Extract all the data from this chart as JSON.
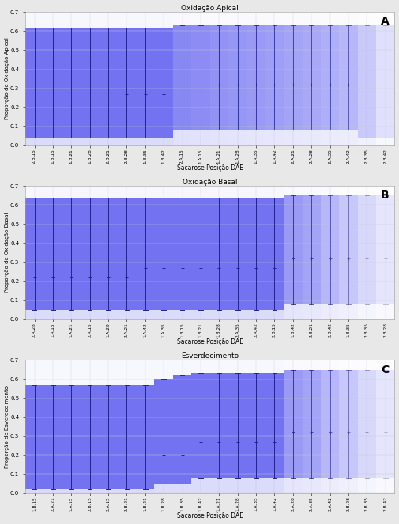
{
  "panels": [
    {
      "title": "Oxidação Apical",
      "ylabel": "Proporção de Oxidação Apical",
      "label": "A",
      "xlabel": "Sacarose Posição DAE",
      "categories": [
        "2.B.15",
        "1.B.15",
        "1.B.21",
        "1.B.28",
        "2.B.21",
        "2.B.28",
        "1.B.35",
        "1.B.42",
        "2.A.15",
        "1.A.15",
        "1.A.21",
        "1.A.28",
        "1.A.35",
        "1.A.42",
        "2.A.21",
        "2.A.28",
        "2.A.35",
        "2.A.42",
        "2.B.35",
        "2.B.42"
      ],
      "mean": [
        0.22,
        0.22,
        0.22,
        0.22,
        0.22,
        0.27,
        0.27,
        0.27,
        0.32,
        0.32,
        0.32,
        0.32,
        0.32,
        0.32,
        0.32,
        0.32,
        0.32,
        0.32,
        0.32,
        0.32
      ],
      "lower": [
        0.04,
        0.04,
        0.04,
        0.04,
        0.04,
        0.04,
        0.04,
        0.04,
        0.08,
        0.08,
        0.08,
        0.08,
        0.08,
        0.08,
        0.08,
        0.08,
        0.08,
        0.08,
        0.04,
        0.04
      ],
      "upper": [
        0.62,
        0.62,
        0.62,
        0.62,
        0.62,
        0.62,
        0.62,
        0.62,
        0.63,
        0.63,
        0.63,
        0.63,
        0.63,
        0.63,
        0.63,
        0.63,
        0.63,
        0.63,
        0.63,
        0.63
      ],
      "alpha": [
        1.0,
        1.0,
        1.0,
        1.0,
        1.0,
        1.0,
        1.0,
        1.0,
        0.85,
        0.82,
        0.78,
        0.75,
        0.72,
        0.69,
        0.65,
        0.62,
        0.57,
        0.52,
        0.38,
        0.22
      ]
    },
    {
      "title": "Oxidação Basal",
      "ylabel": "Proporção de Oxidação Basal",
      "label": "B",
      "xlabel": "Sacarose Posição DAE",
      "categories": [
        "2.A.28",
        "1.A.15",
        "1.A.21",
        "2.A.15",
        "1.A.28",
        "2.A.21",
        "1.A.42",
        "1.A.35",
        "1.B.15",
        "1.B.21",
        "1.B.28",
        "2.A.35",
        "2.A.42",
        "2.B.15",
        "1.B.42",
        "2.B.21",
        "2.B.42",
        "1.B.35",
        "2.B.35",
        "2.B.28"
      ],
      "mean": [
        0.22,
        0.22,
        0.22,
        0.22,
        0.22,
        0.22,
        0.27,
        0.27,
        0.27,
        0.27,
        0.27,
        0.27,
        0.27,
        0.27,
        0.32,
        0.32,
        0.32,
        0.32,
        0.32,
        0.32
      ],
      "lower": [
        0.05,
        0.05,
        0.05,
        0.05,
        0.05,
        0.05,
        0.05,
        0.05,
        0.05,
        0.05,
        0.05,
        0.05,
        0.05,
        0.05,
        0.08,
        0.08,
        0.08,
        0.08,
        0.08,
        0.08
      ],
      "upper": [
        0.64,
        0.64,
        0.64,
        0.64,
        0.64,
        0.64,
        0.64,
        0.64,
        0.64,
        0.64,
        0.64,
        0.64,
        0.64,
        0.64,
        0.65,
        0.65,
        0.65,
        0.65,
        0.65,
        0.65
      ],
      "alpha": [
        1.0,
        1.0,
        1.0,
        1.0,
        1.0,
        1.0,
        1.0,
        1.0,
        1.0,
        1.0,
        1.0,
        1.0,
        1.0,
        1.0,
        0.72,
        0.65,
        0.52,
        0.4,
        0.28,
        0.18
      ]
    },
    {
      "title": "Esverdecimento",
      "ylabel": "Proporção de Esverdecimento",
      "label": "C",
      "xlabel": "Sacarose Posição DAE",
      "categories": [
        "1.B.15",
        "2.A.21",
        "1.A.15",
        "2.B.15",
        "2.A.15",
        "2.B.21",
        "1.B.21",
        "1.B.28",
        "1.B.35",
        "1.B.42",
        "1.A.21",
        "1.A.28",
        "1.A.35",
        "1.A.42",
        "2.A.28",
        "2.A.35",
        "2.A.42",
        "2.B.28",
        "2.B.35",
        "2.B.42"
      ],
      "mean": [
        0.05,
        0.05,
        0.05,
        0.05,
        0.05,
        0.05,
        0.05,
        0.2,
        0.2,
        0.27,
        0.27,
        0.27,
        0.27,
        0.27,
        0.32,
        0.32,
        0.32,
        0.32,
        0.32,
        0.32
      ],
      "lower": [
        0.02,
        0.02,
        0.02,
        0.02,
        0.02,
        0.02,
        0.02,
        0.05,
        0.05,
        0.08,
        0.08,
        0.08,
        0.08,
        0.08,
        0.08,
        0.08,
        0.08,
        0.08,
        0.08,
        0.08
      ],
      "upper": [
        0.57,
        0.57,
        0.57,
        0.57,
        0.57,
        0.57,
        0.57,
        0.6,
        0.62,
        0.63,
        0.63,
        0.63,
        0.63,
        0.63,
        0.65,
        0.65,
        0.65,
        0.65,
        0.65,
        0.65
      ],
      "alpha": [
        1.0,
        1.0,
        1.0,
        1.0,
        1.0,
        1.0,
        1.0,
        1.0,
        1.0,
        1.0,
        1.0,
        1.0,
        1.0,
        1.0,
        0.72,
        0.65,
        0.52,
        0.4,
        0.28,
        0.18
      ]
    }
  ],
  "ylim": [
    0.0,
    0.7
  ],
  "yticks": [
    0.0,
    0.1,
    0.2,
    0.3,
    0.4,
    0.5,
    0.6,
    0.7
  ],
  "fig_width": 5.05,
  "fig_height": 6.63,
  "dpi": 100,
  "bg_color": "#e8e8e8",
  "panel_bg": "#ffffff",
  "base_color": [
    0.45,
    0.45,
    0.95
  ]
}
